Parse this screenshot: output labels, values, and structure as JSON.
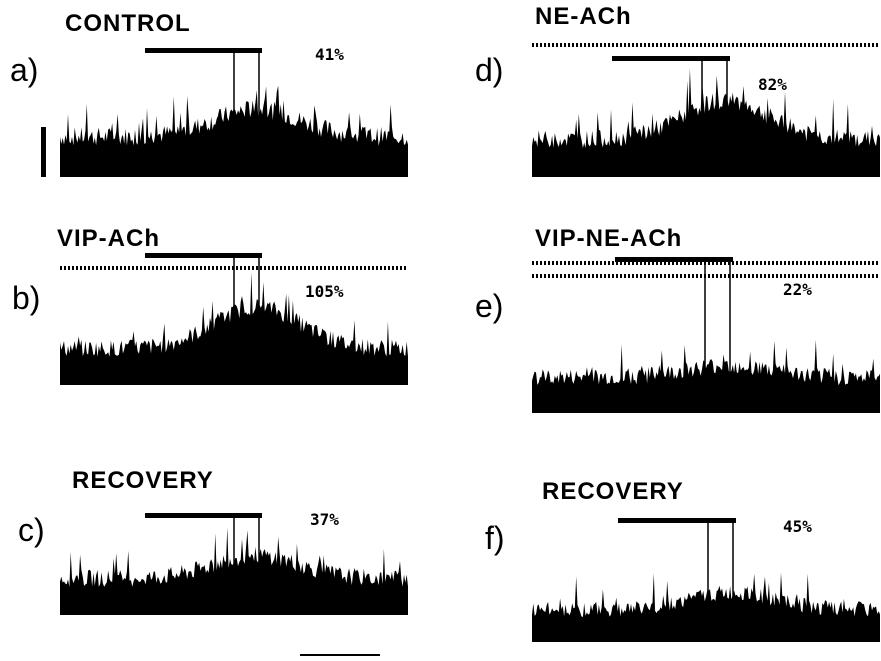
{
  "chart_data": {
    "type": "multi-panel trace recordings",
    "colors": {
      "trace": "#000000",
      "background": "#ffffff"
    },
    "panels": [
      {
        "id": "a",
        "letter": "a)",
        "title": "CONTROL",
        "percent": "41%",
        "dotted_lines": 0,
        "response": 0.6
      },
      {
        "id": "b",
        "letter": "b)",
        "title": "VIP-ACh",
        "percent": "105%",
        "dotted_lines": 1,
        "response": 1.0
      },
      {
        "id": "c",
        "letter": "c)",
        "title": "RECOVERY",
        "percent": "37%",
        "dotted_lines": 0,
        "response": 0.55
      },
      {
        "id": "d",
        "letter": "d)",
        "title": "NE-ACh",
        "percent": "82%",
        "dotted_lines": 1,
        "response": 0.9
      },
      {
        "id": "e",
        "letter": "e)",
        "title": "VIP-NE-ACh",
        "percent": "22%",
        "dotted_lines": 2,
        "response": 0.3
      },
      {
        "id": "f",
        "letter": "f)",
        "title": "RECOVERY",
        "percent": "45%",
        "dotted_lines": 0,
        "response": 0.45
      }
    ]
  }
}
